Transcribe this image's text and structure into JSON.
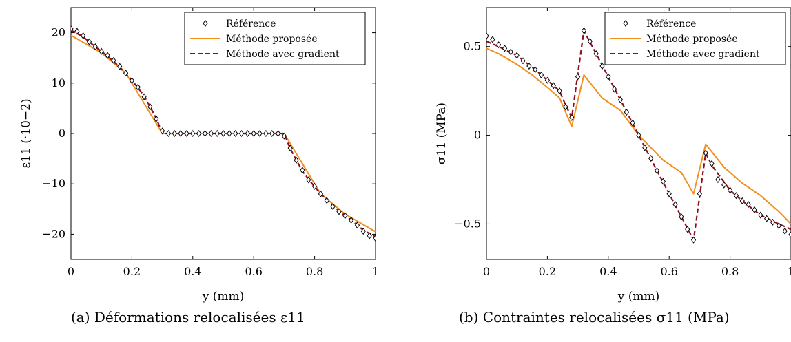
{
  "colors": {
    "reference": "#000000",
    "proposed": "#f28e1c",
    "gradient": "#8b0f1f"
  },
  "legend": {
    "reference": "Référence",
    "proposed": "Méthode proposée",
    "gradient": "Méthode avec gradient"
  },
  "chart_data": [
    {
      "type": "line",
      "caption": "(a) Déformations relocalisées ε11",
      "xlabel": "y (mm)",
      "ylabel": "ε11 (·10−2)",
      "xlim": [
        0,
        1
      ],
      "ylim": [
        -25,
        25
      ],
      "xticks": [
        0,
        0.2,
        0.4,
        0.6,
        0.8,
        1
      ],
      "xtick_labels": [
        "0",
        "0.2",
        "0.4",
        "0.6",
        "0.8",
        "1"
      ],
      "yticks": [
        20,
        10,
        0,
        -10,
        -20
      ],
      "ytick_labels": [
        "20",
        "10",
        "0",
        "−10",
        "−20"
      ],
      "legend_position": "top-right",
      "grid": false,
      "series": [
        {
          "name": "Référence",
          "style": "markers-diamond",
          "x": [
            0,
            0.02,
            0.04,
            0.06,
            0.08,
            0.1,
            0.12,
            0.14,
            0.16,
            0.18,
            0.2,
            0.22,
            0.24,
            0.26,
            0.28,
            0.3,
            0.32,
            0.34,
            0.36,
            0.38,
            0.4,
            0.42,
            0.44,
            0.46,
            0.48,
            0.5,
            0.52,
            0.54,
            0.56,
            0.58,
            0.6,
            0.62,
            0.64,
            0.66,
            0.68,
            0.7,
            0.72,
            0.74,
            0.76,
            0.78,
            0.8,
            0.82,
            0.84,
            0.86,
            0.88,
            0.9,
            0.92,
            0.94,
            0.96,
            0.98,
            1.0
          ],
          "y": [
            20.8,
            20.3,
            19.4,
            18.2,
            17.2,
            16.3,
            15.5,
            14.5,
            13.3,
            12.0,
            10.5,
            9.2,
            7.3,
            5.3,
            2.9,
            0.5,
            0,
            0,
            0,
            0,
            0,
            0,
            0,
            0,
            0,
            0,
            0,
            0,
            0,
            0,
            0,
            0,
            0,
            0,
            0,
            -0.5,
            -2.9,
            -5.3,
            -7.3,
            -9.2,
            -10.5,
            -12.0,
            -13.3,
            -14.5,
            -15.5,
            -16.3,
            -17.2,
            -18.2,
            -19.4,
            -20.3,
            -20.8
          ]
        },
        {
          "name": "Méthode proposée",
          "style": "solid",
          "x": [
            0,
            0.1,
            0.18,
            0.24,
            0.3,
            0.7,
            0.76,
            0.82,
            0.9,
            1
          ],
          "y": [
            19.5,
            16,
            12,
            6,
            0,
            0,
            -6,
            -12,
            -16,
            -19.5
          ]
        },
        {
          "name": "Méthode avec gradient",
          "style": "dashed",
          "x": [
            0,
            0.04,
            0.08,
            0.12,
            0.16,
            0.2,
            0.24,
            0.28,
            0.3,
            0.7,
            0.72,
            0.76,
            0.8,
            0.84,
            0.88,
            0.92,
            0.96,
            1
          ],
          "y": [
            20.5,
            19.2,
            17.2,
            15.4,
            13.2,
            10.6,
            7.5,
            3.0,
            0,
            0,
            -3.0,
            -7.5,
            -10.6,
            -13.2,
            -15.4,
            -17.2,
            -19.2,
            -20.5
          ]
        }
      ]
    },
    {
      "type": "line",
      "caption": "(b) Contraintes relocalisées σ11 (MPa)",
      "xlabel": "y (mm)",
      "ylabel": "σ11 (MPa)",
      "xlim": [
        0,
        1
      ],
      "ylim": [
        -0.7,
        0.72
      ],
      "xticks": [
        0,
        0.2,
        0.4,
        0.6,
        0.8,
        1
      ],
      "xtick_labels": [
        "0",
        "0.2",
        "0.4",
        "0.6",
        "0.8",
        "1"
      ],
      "yticks": [
        0.5,
        0,
        -0.5
      ],
      "ytick_labels": [
        "0.5",
        "0",
        "−0.5"
      ],
      "legend_position": "top-right",
      "grid": false,
      "series": [
        {
          "name": "Référence",
          "style": "markers-diamond",
          "x": [
            0,
            0.02,
            0.04,
            0.06,
            0.08,
            0.1,
            0.12,
            0.14,
            0.16,
            0.18,
            0.2,
            0.22,
            0.24,
            0.26,
            0.28,
            0.3,
            0.32,
            0.34,
            0.36,
            0.38,
            0.4,
            0.42,
            0.44,
            0.46,
            0.48,
            0.5,
            0.52,
            0.54,
            0.56,
            0.58,
            0.6,
            0.62,
            0.64,
            0.66,
            0.68,
            0.7,
            0.72,
            0.74,
            0.76,
            0.78,
            0.8,
            0.82,
            0.84,
            0.86,
            0.88,
            0.9,
            0.92,
            0.94,
            0.96,
            0.98,
            1.0
          ],
          "y": [
            0.56,
            0.54,
            0.51,
            0.49,
            0.47,
            0.45,
            0.42,
            0.39,
            0.37,
            0.34,
            0.31,
            0.28,
            0.25,
            0.16,
            0.1,
            0.33,
            0.59,
            0.53,
            0.46,
            0.39,
            0.33,
            0.26,
            0.2,
            0.13,
            0.07,
            0.0,
            -0.07,
            -0.13,
            -0.2,
            -0.26,
            -0.33,
            -0.39,
            -0.46,
            -0.53,
            -0.59,
            -0.33,
            -0.1,
            -0.16,
            -0.25,
            -0.28,
            -0.31,
            -0.34,
            -0.37,
            -0.39,
            -0.42,
            -0.45,
            -0.47,
            -0.49,
            -0.51,
            -0.54,
            -0.56
          ]
        },
        {
          "name": "Méthode proposée",
          "style": "solid",
          "x": [
            0,
            0.04,
            0.1,
            0.15,
            0.2,
            0.24,
            0.28,
            0.32,
            0.38,
            0.44,
            0.5,
            0.58,
            0.64,
            0.68,
            0.72,
            0.78,
            0.84,
            0.9,
            0.96,
            1
          ],
          "y": [
            0.49,
            0.46,
            0.4,
            0.34,
            0.27,
            0.21,
            0.05,
            0.34,
            0.21,
            0.14,
            0,
            -0.14,
            -0.21,
            -0.33,
            -0.05,
            -0.18,
            -0.27,
            -0.34,
            -0.43,
            -0.5
          ]
        },
        {
          "name": "Méthode avec gradient",
          "style": "dashed",
          "x": [
            0,
            0.04,
            0.1,
            0.16,
            0.2,
            0.24,
            0.26,
            0.28,
            0.32,
            0.36,
            0.4,
            0.44,
            0.5,
            0.56,
            0.6,
            0.64,
            0.68,
            0.72,
            0.74,
            0.8,
            0.84,
            0.9,
            0.96,
            1
          ],
          "y": [
            0.53,
            0.5,
            0.45,
            0.37,
            0.31,
            0.25,
            0.17,
            0.1,
            0.59,
            0.46,
            0.33,
            0.2,
            0.0,
            -0.2,
            -0.33,
            -0.46,
            -0.59,
            -0.1,
            -0.17,
            -0.31,
            -0.37,
            -0.45,
            -0.5,
            -0.53
          ]
        }
      ]
    }
  ]
}
